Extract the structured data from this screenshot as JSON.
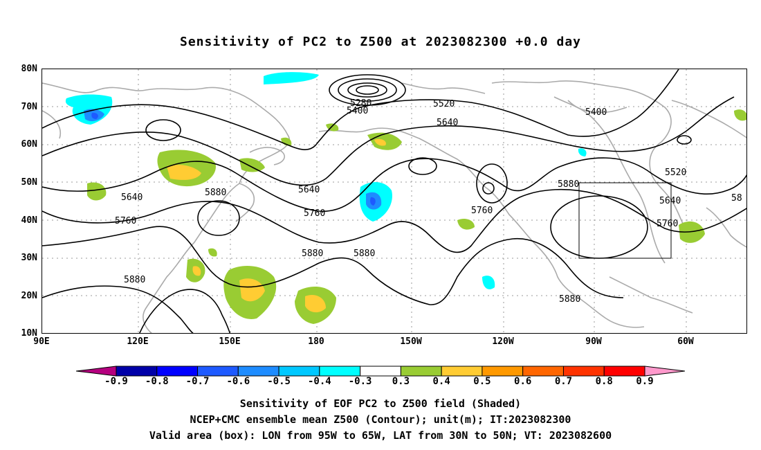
{
  "title": "Sensitivity of PC2 to Z500 at 2023082300 +0.0 day",
  "lat_labels": [
    "80N",
    "70N",
    "60N",
    "50N",
    "40N",
    "30N",
    "20N",
    "10N"
  ],
  "lon_labels": [
    "90E",
    "120E",
    "150E",
    "180",
    "150W",
    "120W",
    "90W",
    "60W"
  ],
  "contour_labels": {
    "c5280": "5280",
    "c5400a": "5400",
    "c5400b": "5400",
    "c5520a": "5520",
    "c5520b": "5520",
    "c5640a": "5640",
    "c5640b": "5640",
    "c5640c": "5640",
    "c5640d": "5640",
    "c5760a": "5760",
    "c5760b": "5760",
    "c5760c": "5760",
    "c5760d": "5760",
    "c5880a": "5880",
    "c5880b": "5880",
    "c5880c": "5880",
    "c5880d": "5880",
    "c5880e": "5880",
    "c5880f": "5880",
    "c58": "58"
  },
  "colorbar": {
    "labels": [
      "-0.9",
      "-0.8",
      "-0.7",
      "-0.6",
      "-0.5",
      "-0.4",
      "-0.3",
      "0.3",
      "0.4",
      "0.5",
      "0.6",
      "0.7",
      "0.8",
      "0.9"
    ],
    "colors": [
      "#b5007f",
      "#0000a8",
      "#0000ff",
      "#1e5aff",
      "#1e8cff",
      "#00c8ff",
      "#00ffff",
      "#ffffff",
      "#99cc33",
      "#ffcc33",
      "#ff9900",
      "#ff6600",
      "#ff3300",
      "#ff0000",
      "#ff99cc"
    ]
  },
  "captions": {
    "line1": "Sensitivity of EOF PC2 to Z500 field (Shaded)",
    "line2": "NCEP+CMC ensemble mean Z500 (Contour); unit(m); IT:2023082300",
    "line3": "Valid area (box): LON from 95W to 65W, LAT from 30N to 50N; VT: 2023082600"
  },
  "valid_box": {
    "lon_from": "95W",
    "lon_to": "65W",
    "lat_from": "30N",
    "lat_to": "50N"
  }
}
